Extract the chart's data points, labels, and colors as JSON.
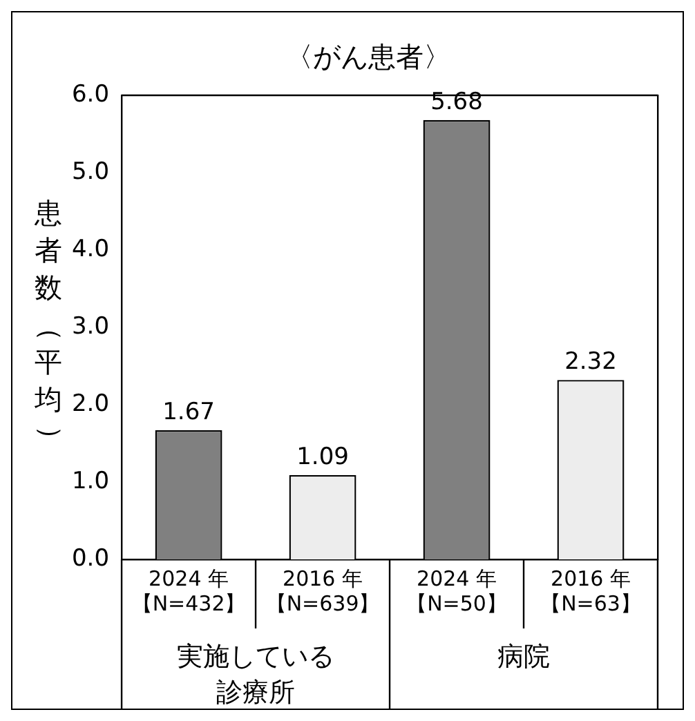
{
  "chart_data": {
    "type": "bar",
    "title": "〈がん患者〉",
    "ylabel": "患者数（平均）",
    "categories": [
      "2024 年【N=432】",
      "2016 年【N=639】",
      "2024 年【N=50】",
      "2016 年【N=63】"
    ],
    "values": [
      1.67,
      1.09,
      5.68,
      2.32
    ],
    "colors": [
      "#808080",
      "#ededed",
      "#808080",
      "#ededed"
    ],
    "ylim": [
      0,
      6
    ],
    "yticks": [
      {
        "value": 0,
        "label": "0.0"
      },
      {
        "value": 1,
        "label": "1.0"
      },
      {
        "value": 2,
        "label": "2.0"
      },
      {
        "value": 3,
        "label": "3.0"
      },
      {
        "value": 4,
        "label": "4.0"
      },
      {
        "value": 5,
        "label": "5.0"
      },
      {
        "value": 6,
        "label": "6.0"
      }
    ],
    "data_labels": true,
    "grid": false,
    "legend": false,
    "annotations": [
      "実施している診療所",
      "病院"
    ]
  }
}
